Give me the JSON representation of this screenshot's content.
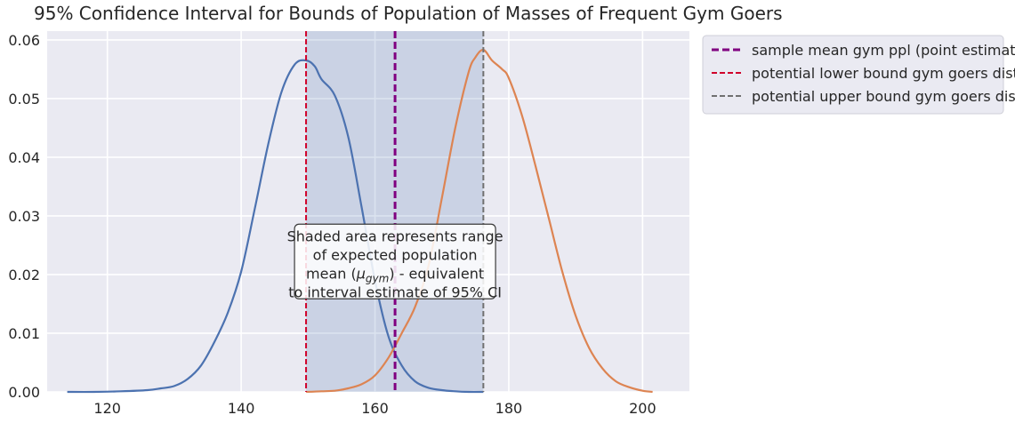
{
  "chart_data": {
    "type": "line",
    "title": "95% Confidence Interval for Bounds of Population of Masses of Frequent Gym Goers",
    "xlabel": "",
    "ylabel": "",
    "xlim": [
      111,
      207
    ],
    "ylim": [
      0,
      0.0615
    ],
    "xticks": [
      120,
      140,
      160,
      180,
      200
    ],
    "yticks": [
      0.0,
      0.01,
      0.02,
      0.03,
      0.04,
      0.05,
      0.06
    ],
    "ytick_labels": [
      "0.00",
      "0.01",
      "0.02",
      "0.03",
      "0.04",
      "0.05",
      "0.06"
    ],
    "grid": true,
    "legend_placement": "outside-upper-right",
    "shaded_interval": {
      "x0": 149.7,
      "x1": 176.2,
      "color": "#4c72b0",
      "opacity": 0.2
    },
    "vlines": [
      {
        "name": "sample mean gym ppl (point estimate)",
        "x": 163.0,
        "color": "#800080",
        "style": "dashed",
        "width": 3
      },
      {
        "name": "potential lower bound gym goers distr.",
        "x": 149.7,
        "color": "#d0002a",
        "style": "dashed",
        "width": 2
      },
      {
        "name": "potential upper bound gym goers distr.",
        "x": 176.2,
        "color": "#707070",
        "style": "dashed",
        "width": 2
      }
    ],
    "series": [
      {
        "color": "#4c72b0",
        "x": [
          114,
          118,
          122,
          126,
          128,
          130,
          132,
          134,
          136,
          138,
          140,
          142,
          144,
          146,
          148,
          149.7,
          151,
          152,
          154,
          156,
          158,
          160,
          162,
          164,
          166,
          168,
          170,
          172,
          174,
          176.2
        ],
        "y": [
          0.0,
          0.0,
          0.0001,
          0.0003,
          0.0006,
          0.001,
          0.0022,
          0.0045,
          0.0085,
          0.0135,
          0.0205,
          0.031,
          0.042,
          0.051,
          0.0558,
          0.0565,
          0.0555,
          0.0533,
          0.0505,
          0.0435,
          0.0315,
          0.019,
          0.0095,
          0.0045,
          0.0018,
          0.0007,
          0.0003,
          0.0001,
          0.0,
          0.0
        ]
      },
      {
        "color": "#dd8452",
        "x": [
          149.7,
          152,
          154,
          156,
          158,
          160,
          162,
          164,
          166,
          168,
          170,
          172,
          174,
          175,
          176.2,
          177.5,
          179,
          180,
          182,
          184,
          186,
          188,
          190,
          192,
          194,
          196,
          198,
          200,
          201.5
        ],
        "y": [
          0.0,
          0.0001,
          0.0002,
          0.0006,
          0.0013,
          0.0028,
          0.0058,
          0.01,
          0.0145,
          0.0215,
          0.033,
          0.045,
          0.0545,
          0.057,
          0.0583,
          0.0565,
          0.055,
          0.0535,
          0.047,
          0.0385,
          0.0295,
          0.0205,
          0.013,
          0.0075,
          0.004,
          0.0018,
          0.0008,
          0.0002,
          0.0
        ]
      }
    ],
    "annotation": {
      "lines": [
        "Shaded area represents range",
        "of expected population",
        "- equivalent",
        "to interval estimate of 95% CI"
      ],
      "math_prefix": "mean (",
      "math_mu": "μ",
      "math_sub": "gym",
      "math_suffix": ")",
      "x": 163.0,
      "y": 0.0195
    }
  }
}
